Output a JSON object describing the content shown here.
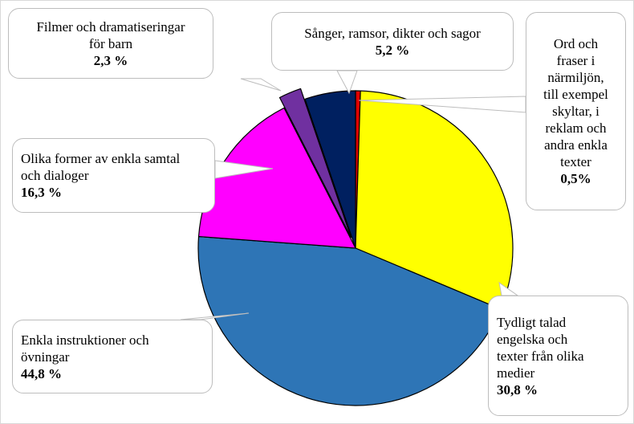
{
  "chart_data": {
    "type": "pie",
    "categories": [
      "Ord och fraser i närmiljön, till exempel skyltar, i reklam och andra enkla texter",
      "Tydligt talad engelska och texter från olika medier",
      "Enkla instruktioner och övningar",
      "Olika former av enkla samtal och dialoger",
      "Filmer och dramatiseringar för barn",
      "Sånger, ramsor, dikter och sagor"
    ],
    "values": [
      0.5,
      30.8,
      44.8,
      16.3,
      2.3,
      5.2
    ],
    "value_labels": [
      "0,5%",
      "30,8 %",
      "44,8 %",
      "16,3 %",
      "2,3 %",
      "5,2 %"
    ],
    "colors": [
      "#e00000",
      "#ffff00",
      "#2e75b6",
      "#ff00ff",
      "#7030a0",
      "#002060"
    ]
  }
}
